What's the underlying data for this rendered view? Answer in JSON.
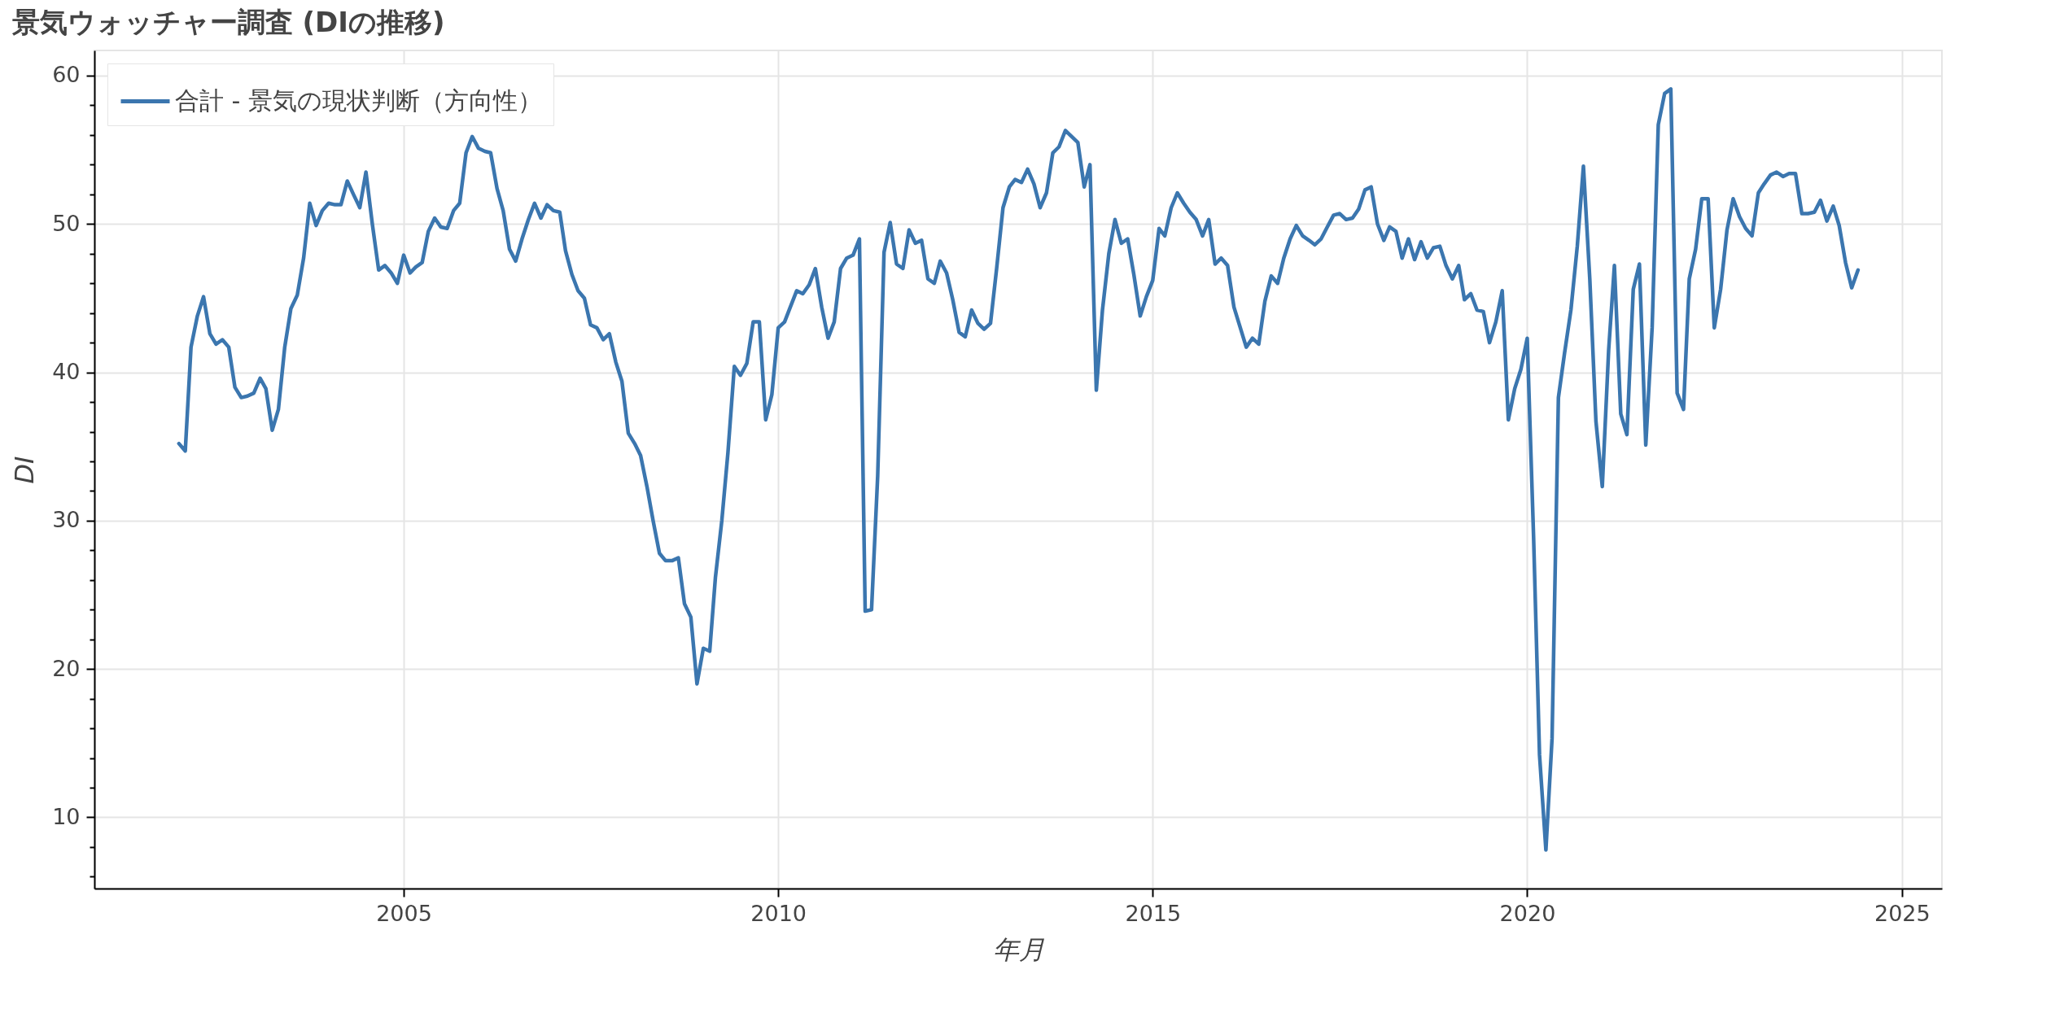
{
  "chart_data": {
    "type": "line",
    "title": "景気ウォッチャー調査 (DIの推移)",
    "xlabel": "年月",
    "ylabel": "DI",
    "x": [
      "2002-01",
      "2002-02",
      "2002-03",
      "2002-04",
      "2002-05",
      "2002-06",
      "2002-07",
      "2002-08",
      "2002-09",
      "2002-10",
      "2002-11",
      "2002-12",
      "2003-01",
      "2003-02",
      "2003-03",
      "2003-04",
      "2003-05",
      "2003-06",
      "2003-07",
      "2003-08",
      "2003-09",
      "2003-10",
      "2003-11",
      "2003-12",
      "2004-01",
      "2004-02",
      "2004-03",
      "2004-04",
      "2004-05",
      "2004-06",
      "2004-07",
      "2004-08",
      "2004-09",
      "2004-10",
      "2004-11",
      "2004-12",
      "2005-01",
      "2005-02",
      "2005-03",
      "2005-04",
      "2005-05",
      "2005-06",
      "2005-07",
      "2005-08",
      "2005-09",
      "2005-10",
      "2005-11",
      "2005-12",
      "2006-01",
      "2006-02",
      "2006-03",
      "2006-04",
      "2006-05",
      "2006-06",
      "2006-07",
      "2006-08",
      "2006-09",
      "2006-10",
      "2006-11",
      "2006-12",
      "2007-01",
      "2007-02",
      "2007-03",
      "2007-04",
      "2007-05",
      "2007-06",
      "2007-07",
      "2007-08",
      "2007-09",
      "2007-10",
      "2007-11",
      "2007-12",
      "2008-01",
      "2008-02",
      "2008-03",
      "2008-04",
      "2008-05",
      "2008-06",
      "2008-07",
      "2008-08",
      "2008-09",
      "2008-10",
      "2008-11",
      "2008-12",
      "2009-01",
      "2009-02",
      "2009-03",
      "2009-04",
      "2009-05",
      "2009-06",
      "2009-07",
      "2009-08",
      "2009-09",
      "2009-10",
      "2009-11",
      "2009-12",
      "2010-01",
      "2010-02",
      "2010-03",
      "2010-04",
      "2010-05",
      "2010-06",
      "2010-07",
      "2010-08",
      "2010-09",
      "2010-10",
      "2010-11",
      "2010-12",
      "2011-01",
      "2011-02",
      "2011-03",
      "2011-04",
      "2011-05",
      "2011-06",
      "2011-07",
      "2011-08",
      "2011-09",
      "2011-10",
      "2011-11",
      "2011-12",
      "2012-01",
      "2012-02",
      "2012-03",
      "2012-04",
      "2012-05",
      "2012-06",
      "2012-07",
      "2012-08",
      "2012-09",
      "2012-10",
      "2012-11",
      "2012-12",
      "2013-01",
      "2013-02",
      "2013-03",
      "2013-04",
      "2013-05",
      "2013-06",
      "2013-07",
      "2013-08",
      "2013-09",
      "2013-10",
      "2013-11",
      "2013-12",
      "2014-01",
      "2014-02",
      "2014-03",
      "2014-04",
      "2014-05",
      "2014-06",
      "2014-07",
      "2014-08",
      "2014-09",
      "2014-10",
      "2014-11",
      "2014-12",
      "2015-01",
      "2015-02",
      "2015-03",
      "2015-04",
      "2015-05",
      "2015-06",
      "2015-07",
      "2015-08",
      "2015-09",
      "2015-10",
      "2015-11",
      "2015-12",
      "2016-01",
      "2016-02",
      "2016-03",
      "2016-04",
      "2016-05",
      "2016-06",
      "2016-07",
      "2016-08",
      "2016-09",
      "2016-10",
      "2016-11",
      "2016-12",
      "2017-01",
      "2017-02",
      "2017-03",
      "2017-04",
      "2017-05",
      "2017-06",
      "2017-07",
      "2017-08",
      "2017-09",
      "2017-10",
      "2017-11",
      "2017-12",
      "2018-01",
      "2018-02",
      "2018-03",
      "2018-04",
      "2018-05",
      "2018-06",
      "2018-07",
      "2018-08",
      "2018-09",
      "2018-10",
      "2018-11",
      "2018-12",
      "2019-01",
      "2019-02",
      "2019-03",
      "2019-04",
      "2019-05",
      "2019-06",
      "2019-07",
      "2019-08",
      "2019-09",
      "2019-10",
      "2019-11",
      "2019-12",
      "2020-01",
      "2020-02",
      "2020-03",
      "2020-04",
      "2020-05",
      "2020-06",
      "2020-07",
      "2020-08",
      "2020-09",
      "2020-10",
      "2020-11",
      "2020-12",
      "2021-01",
      "2021-02",
      "2021-03",
      "2021-04",
      "2021-05",
      "2021-06",
      "2021-07",
      "2021-08",
      "2021-09",
      "2021-10",
      "2021-11",
      "2021-12",
      "2022-01",
      "2022-02",
      "2022-03",
      "2022-04",
      "2022-05",
      "2022-06",
      "2022-07",
      "2022-08",
      "2022-09",
      "2022-10",
      "2022-11",
      "2022-12",
      "2023-01",
      "2023-02",
      "2023-03",
      "2023-04",
      "2023-05",
      "2023-06",
      "2023-07",
      "2023-08",
      "2023-09",
      "2023-10",
      "2023-11",
      "2023-12",
      "2024-01",
      "2024-02",
      "2024-03",
      "2024-04",
      "2024-05",
      "2024-06"
    ],
    "series": [
      {
        "name": "合計 - 景気の現状判断（方向性）",
        "color": "#3b76af",
        "values": [
          35.2,
          34.7,
          41.7,
          43.8,
          45.1,
          42.6,
          41.9,
          42.2,
          41.7,
          39.0,
          38.3,
          38.4,
          38.6,
          39.6,
          38.9,
          36.1,
          37.5,
          41.7,
          44.3,
          45.2,
          47.7,
          51.4,
          49.9,
          50.9,
          51.4,
          51.3,
          51.3,
          52.9,
          52.0,
          51.1,
          53.5,
          50.0,
          46.9,
          47.2,
          46.7,
          46.0,
          47.9,
          46.7,
          47.1,
          47.4,
          49.5,
          50.4,
          49.8,
          49.7,
          50.9,
          51.4,
          54.8,
          55.9,
          55.1,
          54.9,
          54.8,
          52.4,
          50.9,
          48.3,
          47.5,
          49.0,
          50.3,
          51.4,
          50.4,
          51.3,
          50.9,
          50.8,
          48.2,
          46.6,
          45.5,
          45.0,
          43.2,
          43.0,
          42.2,
          42.6,
          40.7,
          39.4,
          35.9,
          35.2,
          34.4,
          32.3,
          30.0,
          27.8,
          27.3,
          27.3,
          27.5,
          24.4,
          23.5,
          19.0,
          21.4,
          21.2,
          26.2,
          30.0,
          34.6,
          40.4,
          39.8,
          40.6,
          43.4,
          43.4,
          36.8,
          38.5,
          43.0,
          43.4,
          44.4,
          45.5,
          45.3,
          45.9,
          47.0,
          44.4,
          42.3,
          43.4,
          47.0,
          47.7,
          47.9,
          49.0,
          23.9,
          24.0,
          33.0,
          48.1,
          50.1,
          47.3,
          47.0,
          49.6,
          48.7,
          48.9,
          46.3,
          46.0,
          47.5,
          46.7,
          44.9,
          42.7,
          42.4,
          44.2,
          43.3,
          42.9,
          43.3,
          47.0,
          51.1,
          52.5,
          53.0,
          52.8,
          53.7,
          52.7,
          51.1,
          52.1,
          54.8,
          55.2,
          56.3,
          55.9,
          55.5,
          52.5,
          54.0,
          38.8,
          44.2,
          48.0,
          50.3,
          48.7,
          49.0,
          46.6,
          43.8,
          45.1,
          46.2,
          49.7,
          49.2,
          51.1,
          52.1,
          51.4,
          50.8,
          50.3,
          49.2,
          50.3,
          47.3,
          47.7,
          47.2,
          44.4,
          43.1,
          41.7,
          42.3,
          41.9,
          44.8,
          46.5,
          46.0,
          47.7,
          49.0,
          49.9,
          49.2,
          48.9,
          48.6,
          49.0,
          49.8,
          50.6,
          50.7,
          50.3,
          50.4,
          51.0,
          52.3,
          52.5,
          50.0,
          48.9,
          49.8,
          49.5,
          47.7,
          49.0,
          47.6,
          48.8,
          47.7,
          48.4,
          48.5,
          47.2,
          46.3,
          47.2,
          44.9,
          45.3,
          44.2,
          44.1,
          42.0,
          43.4,
          45.5,
          36.8,
          38.9,
          40.2,
          42.3,
          28.9,
          14.2,
          7.8,
          15.3,
          38.3,
          41.3,
          44.2,
          48.5,
          53.9,
          46.3,
          36.7,
          32.3,
          41.5,
          47.2,
          37.2,
          35.8,
          45.6,
          47.3,
          35.1,
          43.0,
          56.7,
          58.8,
          59.1,
          38.6,
          37.5,
          46.3,
          48.3,
          51.7,
          51.7,
          43.0,
          45.6,
          49.6,
          51.7,
          50.5,
          49.7,
          49.2,
          52.1,
          52.7,
          53.3,
          53.5,
          53.2,
          53.4,
          53.4,
          50.7,
          50.7,
          50.8,
          51.6,
          50.2,
          51.2,
          49.9,
          47.4,
          45.7,
          46.9
        ]
      }
    ],
    "xlim": [
      "2000-11-15",
      "2025-07-15"
    ],
    "xticks": [
      "2005",
      "2010",
      "2015",
      "2020",
      "2025"
    ],
    "ylim": [
      5.2,
      61.7
    ],
    "yticks": [
      {
        "value": 6,
        "label": null
      },
      {
        "value": 8,
        "label": null
      },
      10,
      {
        "value": 12,
        "label": null
      },
      {
        "value": 14,
        "label": null
      },
      {
        "value": 16,
        "label": null
      },
      {
        "value": 18,
        "label": null
      },
      20,
      {
        "value": 22,
        "label": null
      },
      {
        "value": 24,
        "label": null
      },
      {
        "value": 26,
        "label": null
      },
      {
        "value": 28,
        "label": null
      },
      30,
      {
        "value": 32,
        "label": null
      },
      {
        "value": 34,
        "label": null
      },
      {
        "value": 36,
        "label": null
      },
      {
        "value": 38,
        "label": null
      },
      40,
      {
        "value": 42,
        "label": null
      },
      {
        "value": 44,
        "label": null
      },
      {
        "value": 46,
        "label": null
      },
      {
        "value": 48,
        "label": null
      },
      50,
      {
        "value": 52,
        "label": null
      },
      {
        "value": 54,
        "label": null
      },
      {
        "value": 56,
        "label": null
      },
      {
        "value": 58,
        "label": null
      },
      60
    ],
    "grid": true,
    "legend": "top left"
  }
}
